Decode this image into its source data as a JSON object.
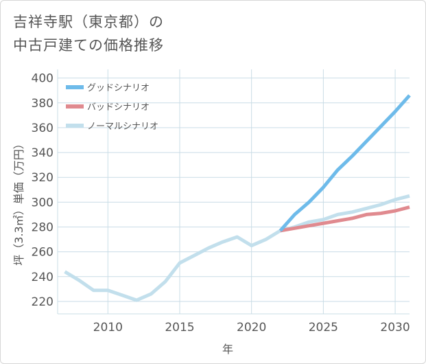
{
  "page": {
    "title_line1": "吉祥寺駅（東京都）の",
    "title_line2": "中古戸建ての価格推移"
  },
  "chart_data": {
    "type": "line",
    "title": "吉祥寺駅（東京都）の中古戸建ての価格推移",
    "xlabel": "年",
    "ylabel": "坪（3.3㎡）単価（万円）",
    "xlim": [
      2006.5,
      2031
    ],
    "ylim": [
      210,
      407
    ],
    "xticks": [
      2010,
      2015,
      2020,
      2025,
      2030
    ],
    "yticks": [
      220,
      240,
      260,
      280,
      300,
      320,
      340,
      360,
      380,
      400
    ],
    "grid": true,
    "legend_position": "top-left",
    "series": [
      {
        "name": "グッドシナリオ",
        "color": "#6ebbea",
        "points": [
          [
            2022,
            277
          ],
          [
            2023,
            290
          ],
          [
            2024,
            300
          ],
          [
            2025,
            312
          ],
          [
            2026,
            326
          ],
          [
            2027,
            337
          ],
          [
            2028,
            349
          ],
          [
            2029,
            361
          ],
          [
            2030,
            373
          ],
          [
            2031,
            386
          ]
        ]
      },
      {
        "name": "バッドシナリオ",
        "color": "#e08a8f",
        "points": [
          [
            2022,
            277
          ],
          [
            2023,
            279
          ],
          [
            2024,
            281
          ],
          [
            2025,
            283
          ],
          [
            2026,
            285
          ],
          [
            2027,
            287
          ],
          [
            2028,
            290
          ],
          [
            2029,
            291
          ],
          [
            2030,
            293
          ],
          [
            2031,
            296
          ]
        ]
      },
      {
        "name": "ノーマルシナリオ",
        "color": "#c2dfec",
        "points": [
          [
            2007,
            244
          ],
          [
            2008,
            237
          ],
          [
            2009,
            229
          ],
          [
            2010,
            229
          ],
          [
            2011,
            225
          ],
          [
            2012,
            221
          ],
          [
            2013,
            226
          ],
          [
            2014,
            236
          ],
          [
            2015,
            251
          ],
          [
            2016,
            257
          ],
          [
            2017,
            263
          ],
          [
            2018,
            268
          ],
          [
            2019,
            272
          ],
          [
            2020,
            265
          ],
          [
            2021,
            270
          ],
          [
            2022,
            277
          ],
          [
            2023,
            280
          ],
          [
            2024,
            284
          ],
          [
            2025,
            286
          ],
          [
            2026,
            290
          ],
          [
            2027,
            292
          ],
          [
            2028,
            295
          ],
          [
            2029,
            298
          ],
          [
            2030,
            302
          ],
          [
            2031,
            305
          ]
        ]
      }
    ]
  }
}
